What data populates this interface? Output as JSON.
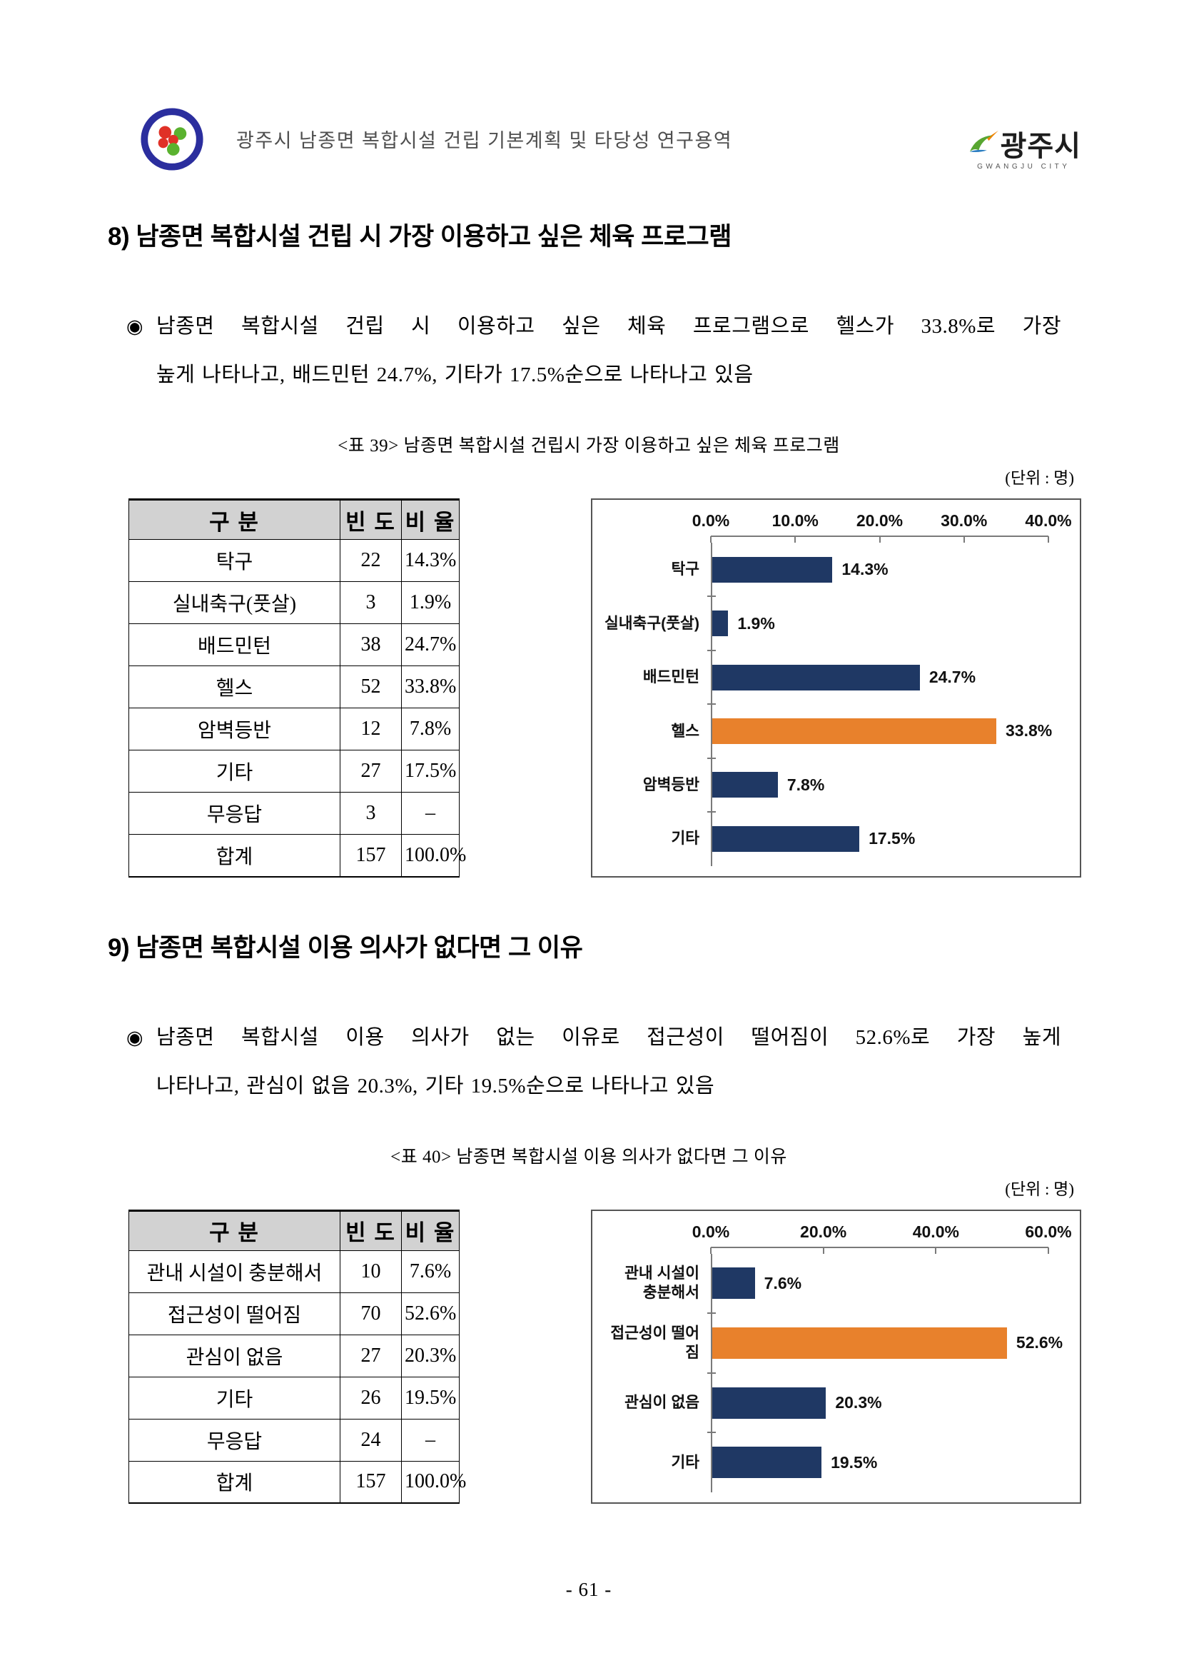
{
  "header": {
    "doc_title": "광주시 남종면 복합시설 건립 기본계획 및 타당성 연구용역",
    "city_wordmark": "광주시",
    "city_wordmark_sub": "GWANGJU CITY"
  },
  "colors": {
    "bar_navy": "#1f3864",
    "bar_orange": "#e8812c",
    "table_header_gray": "#d2d2d2"
  },
  "sections": [
    {
      "heading": "8) 남종면 복합시설 건립 시 가장 이용하고 싶은 체육 프로그램",
      "bullet": "◉",
      "para_line1": "남종면 복합시설 건립 시 이용하고 싶은 체육 프로그램으로 헬스가 33.8%로 가장",
      "para_line2": "높게 나타나고, 배드민턴 24.7%, 기타가 17.5%순으로 나타나고 있음",
      "table_caption": "<표 39> 남종면 복합시설 건립시 가장 이용하고 싶은 체육 프로그램",
      "unit_label": "(단위 : 명)",
      "table": {
        "headers": [
          "구 분",
          "빈 도",
          "비 율"
        ],
        "rows": [
          [
            "탁구",
            "22",
            "14.3%"
          ],
          [
            "실내축구(풋살)",
            "3",
            "1.9%"
          ],
          [
            "배드민턴",
            "38",
            "24.7%"
          ],
          [
            "헬스",
            "52",
            "33.8%"
          ],
          [
            "암벽등반",
            "12",
            "7.8%"
          ],
          [
            "기타",
            "27",
            "17.5%"
          ],
          [
            "무응답",
            "3",
            "–"
          ],
          [
            "합계",
            "157",
            "100.0%"
          ]
        ]
      },
      "chart": {
        "max": 40,
        "ticks": [
          "0.0%",
          "10.0%",
          "20.0%",
          "30.0%",
          "40.0%"
        ],
        "bars": [
          {
            "label": "탁구",
            "value": 14.3,
            "text": "14.3%",
            "color": "navy"
          },
          {
            "label": "실내축구(풋살)",
            "value": 1.9,
            "text": "1.9%",
            "color": "navy"
          },
          {
            "label": "배드민턴",
            "value": 24.7,
            "text": "24.7%",
            "color": "navy"
          },
          {
            "label": "헬스",
            "value": 33.8,
            "text": "33.8%",
            "color": "orange"
          },
          {
            "label": "암벽등반",
            "value": 7.8,
            "text": "7.8%",
            "color": "navy"
          },
          {
            "label": "기타",
            "value": 17.5,
            "text": "17.5%",
            "color": "navy"
          }
        ]
      }
    },
    {
      "heading": "9) 남종면 복합시설 이용 의사가 없다면 그 이유",
      "bullet": "◉",
      "para_line1": "남종면 복합시설 이용 의사가 없는 이유로 접근성이 떨어짐이 52.6%로 가장 높게",
      "para_line2": "나타나고, 관심이 없음 20.3%, 기타 19.5%순으로 나타나고 있음",
      "table_caption": "<표 40> 남종면 복합시설 이용 의사가 없다면 그 이유",
      "unit_label": "(단위 : 명)",
      "table": {
        "headers": [
          "구 분",
          "빈 도",
          "비 율"
        ],
        "rows": [
          [
            "관내 시설이 충분해서",
            "10",
            "7.6%"
          ],
          [
            "접근성이 떨어짐",
            "70",
            "52.6%"
          ],
          [
            "관심이 없음",
            "27",
            "20.3%"
          ],
          [
            "기타",
            "26",
            "19.5%"
          ],
          [
            "무응답",
            "24",
            "–"
          ],
          [
            "합계",
            "157",
            "100.0%"
          ]
        ]
      },
      "chart": {
        "max": 60,
        "ticks": [
          "0.0%",
          "20.0%",
          "40.0%",
          "60.0%"
        ],
        "bars": [
          {
            "label": "관내 시설이\n충분해서",
            "value": 7.6,
            "text": "7.6%",
            "color": "navy"
          },
          {
            "label": "접근성이 떨어짐",
            "value": 52.6,
            "text": "52.6%",
            "color": "orange"
          },
          {
            "label": "관심이 없음",
            "value": 20.3,
            "text": "20.3%",
            "color": "navy"
          },
          {
            "label": "기타",
            "value": 19.5,
            "text": "19.5%",
            "color": "navy"
          }
        ]
      }
    }
  ],
  "chart_data": [
    {
      "type": "bar",
      "orientation": "horizontal",
      "title": "<표 39> 남종면 복합시설 건립시 가장 이용하고 싶은 체육 프로그램",
      "categories": [
        "탁구",
        "실내축구(풋살)",
        "배드민턴",
        "헬스",
        "암벽등반",
        "기타"
      ],
      "values": [
        14.3,
        1.9,
        24.7,
        33.8,
        7.8,
        17.5
      ],
      "unit": "%",
      "xlim": [
        0,
        40
      ],
      "xticks": [
        "0.0%",
        "10.0%",
        "20.0%",
        "30.0%",
        "40.0%"
      ],
      "highlighted_category": "헬스",
      "bar_color": "#1f3864",
      "highlight_color": "#e8812c",
      "legend": "none",
      "grid": "off"
    },
    {
      "type": "bar",
      "orientation": "horizontal",
      "title": "<표 40> 남종면 복합시설 이용 의사가 없다면 그 이유",
      "categories": [
        "관내 시설이 충분해서",
        "접근성이 떨어짐",
        "관심이 없음",
        "기타"
      ],
      "values": [
        7.6,
        52.6,
        20.3,
        19.5
      ],
      "unit": "%",
      "xlim": [
        0,
        60
      ],
      "xticks": [
        "0.0%",
        "20.0%",
        "40.0%",
        "60.0%"
      ],
      "highlighted_category": "접근성이 떨어짐",
      "bar_color": "#1f3864",
      "highlight_color": "#e8812c",
      "legend": "none",
      "grid": "off"
    }
  ],
  "footer": {
    "page_number": "- 61 -"
  }
}
